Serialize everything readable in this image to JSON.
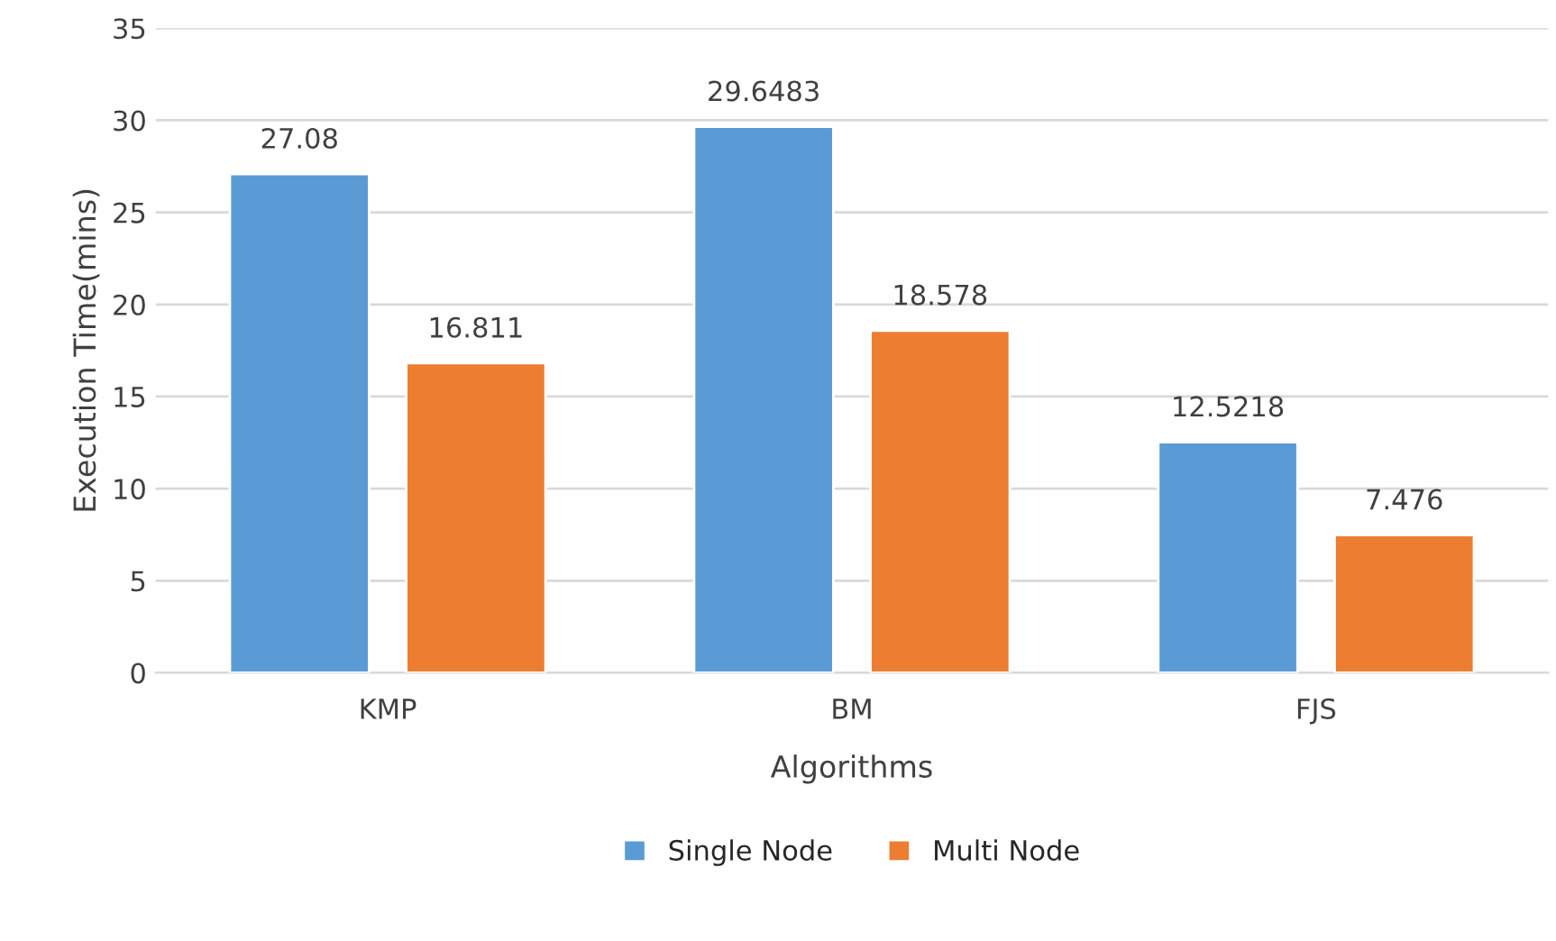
{
  "chart_data": {
    "type": "bar",
    "xlabel": "Algorithms",
    "ylabel": "Execution Time(mins)",
    "categories": [
      "KMP",
      "BM",
      "FJS"
    ],
    "series": [
      {
        "name": "Single Node",
        "color": "#5b9bd5",
        "values": [
          27.08,
          29.6483,
          12.5218
        ]
      },
      {
        "name": "Multi Node",
        "color": "#ed7d31",
        "values": [
          16.811,
          18.578,
          7.476
        ]
      }
    ],
    "ylim": [
      0,
      35
    ],
    "yticks": [
      0,
      5,
      10,
      15,
      20,
      25,
      30,
      35
    ],
    "grid": "y",
    "legend": "bottom",
    "data_labels": true
  }
}
